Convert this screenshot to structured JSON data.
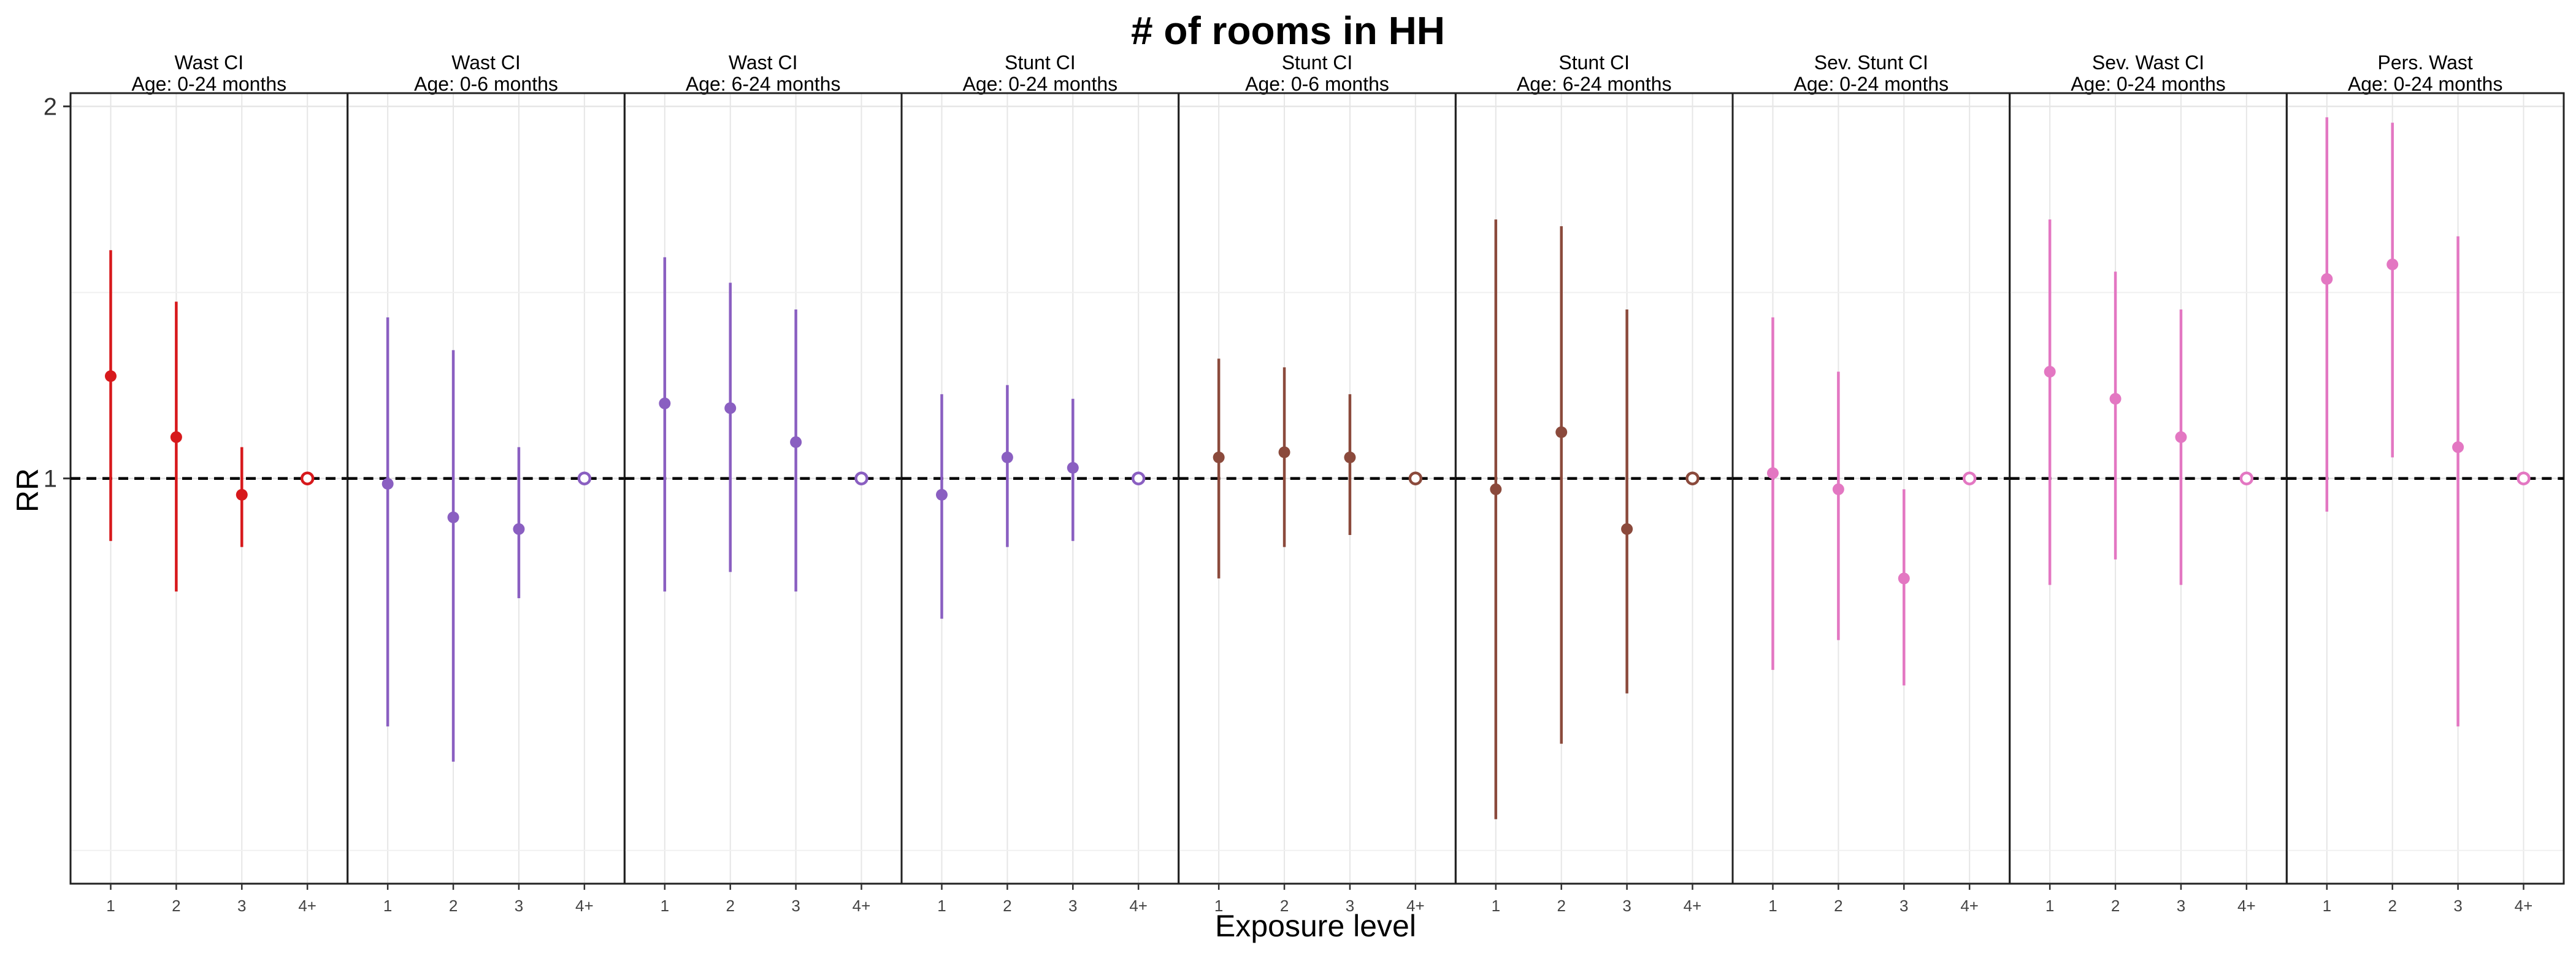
{
  "chart_data": {
    "type": "scatter",
    "title": "# of rooms in HH",
    "xlabel": "Exposure level",
    "ylabel": "RR",
    "categories": [
      "1",
      "2",
      "3",
      "4+"
    ],
    "y_scale": "log",
    "ylim": [
      0.47,
      2.05
    ],
    "y_ticks": [
      {
        "value": 1,
        "label": "1"
      },
      {
        "value": 2,
        "label": "2"
      }
    ],
    "y_minor_gridlines": [
      0.5,
      1.414
    ],
    "grid": true,
    "reference_line": {
      "value": 1,
      "style": "dashed"
    },
    "reference_category": "4+",
    "colors": {
      "red": "#d7191c",
      "purple": "#8a5fc1",
      "brown": "#8b4a3c",
      "pink": "#e377c2"
    },
    "panels": [
      {
        "title_line1": "Wast CI",
        "title_line2": "Age: 0-24 months",
        "color": "#d7191c",
        "points": [
          {
            "x": "1",
            "rr": 1.21,
            "lo": 0.89,
            "hi": 1.53
          },
          {
            "x": "2",
            "rr": 1.08,
            "lo": 0.81,
            "hi": 1.39
          },
          {
            "x": "3",
            "rr": 0.97,
            "lo": 0.88,
            "hi": 1.06
          },
          {
            "x": "4+",
            "rr": 1.0,
            "lo": 1.0,
            "hi": 1.0
          }
        ]
      },
      {
        "title_line1": "Wast CI",
        "title_line2": "Age: 0-6 months",
        "color": "#8a5fc1",
        "points": [
          {
            "x": "1",
            "rr": 0.99,
            "lo": 0.63,
            "hi": 1.35
          },
          {
            "x": "2",
            "rr": 0.93,
            "lo": 0.59,
            "hi": 1.27
          },
          {
            "x": "3",
            "rr": 0.91,
            "lo": 0.8,
            "hi": 1.06
          },
          {
            "x": "4+",
            "rr": 1.0,
            "lo": 1.0,
            "hi": 1.0
          }
        ]
      },
      {
        "title_line1": "Wast CI",
        "title_line2": "Age: 6-24 months",
        "color": "#8a5fc1",
        "points": [
          {
            "x": "1",
            "rr": 1.15,
            "lo": 0.81,
            "hi": 1.51
          },
          {
            "x": "2",
            "rr": 1.14,
            "lo": 0.84,
            "hi": 1.44
          },
          {
            "x": "3",
            "rr": 1.07,
            "lo": 0.81,
            "hi": 1.37
          },
          {
            "x": "4+",
            "rr": 1.0,
            "lo": 1.0,
            "hi": 1.0
          }
        ]
      },
      {
        "title_line1": "Stunt CI",
        "title_line2": "Age: 0-24 months",
        "color": "#8a5fc1",
        "points": [
          {
            "x": "1",
            "rr": 0.97,
            "lo": 0.77,
            "hi": 1.17
          },
          {
            "x": "2",
            "rr": 1.04,
            "lo": 0.88,
            "hi": 1.19
          },
          {
            "x": "3",
            "rr": 1.02,
            "lo": 0.89,
            "hi": 1.16
          },
          {
            "x": "4+",
            "rr": 1.0,
            "lo": 1.0,
            "hi": 1.0
          }
        ]
      },
      {
        "title_line1": "Stunt CI",
        "title_line2": "Age: 0-6 months",
        "color": "#8b4a3c",
        "points": [
          {
            "x": "1",
            "rr": 1.04,
            "lo": 0.83,
            "hi": 1.25
          },
          {
            "x": "2",
            "rr": 1.05,
            "lo": 0.88,
            "hi": 1.23
          },
          {
            "x": "3",
            "rr": 1.04,
            "lo": 0.9,
            "hi": 1.17
          },
          {
            "x": "4+",
            "rr": 1.0,
            "lo": 1.0,
            "hi": 1.0
          }
        ]
      },
      {
        "title_line1": "Stunt CI",
        "title_line2": "Age: 6-24 months",
        "color": "#8b4a3c",
        "points": [
          {
            "x": "1",
            "rr": 0.98,
            "lo": 0.53,
            "hi": 1.62
          },
          {
            "x": "2",
            "rr": 1.09,
            "lo": 0.61,
            "hi": 1.6
          },
          {
            "x": "3",
            "rr": 0.91,
            "lo": 0.67,
            "hi": 1.37
          },
          {
            "x": "4+",
            "rr": 1.0,
            "lo": 1.0,
            "hi": 1.0
          }
        ]
      },
      {
        "title_line1": "Sev. Stunt CI",
        "title_line2": "Age: 0-24 months",
        "color": "#e377c2",
        "points": [
          {
            "x": "1",
            "rr": 1.01,
            "lo": 0.7,
            "hi": 1.35
          },
          {
            "x": "2",
            "rr": 0.98,
            "lo": 0.74,
            "hi": 1.22
          },
          {
            "x": "3",
            "rr": 0.83,
            "lo": 0.68,
            "hi": 0.98
          },
          {
            "x": "4+",
            "rr": 1.0,
            "lo": 1.0,
            "hi": 1.0
          }
        ]
      },
      {
        "title_line1": "Sev. Wast CI",
        "title_line2": "Age: 0-24 months",
        "color": "#e377c2",
        "points": [
          {
            "x": "1",
            "rr": 1.22,
            "lo": 0.82,
            "hi": 1.62
          },
          {
            "x": "2",
            "rr": 1.16,
            "lo": 0.86,
            "hi": 1.47
          },
          {
            "x": "3",
            "rr": 1.08,
            "lo": 0.82,
            "hi": 1.37
          },
          {
            "x": "4+",
            "rr": 1.0,
            "lo": 1.0,
            "hi": 1.0
          }
        ]
      },
      {
        "title_line1": "Pers. Wast",
        "title_line2": "Age: 0-24 months",
        "color": "#e377c2",
        "points": [
          {
            "x": "1",
            "rr": 1.45,
            "lo": 0.94,
            "hi": 1.96
          },
          {
            "x": "2",
            "rr": 1.49,
            "lo": 1.04,
            "hi": 1.94
          },
          {
            "x": "3",
            "rr": 1.06,
            "lo": 0.63,
            "hi": 1.57
          },
          {
            "x": "4+",
            "rr": 1.0,
            "lo": 1.0,
            "hi": 1.0
          }
        ]
      }
    ]
  }
}
